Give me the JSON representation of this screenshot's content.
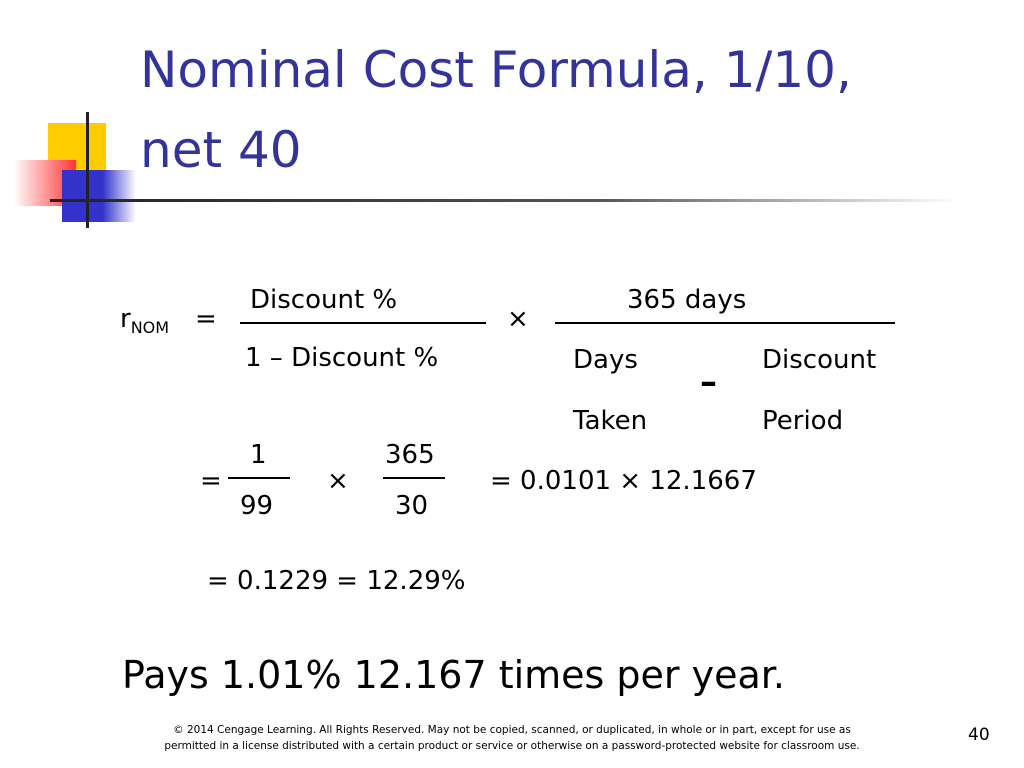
{
  "title": [
    "Nominal Cost Formula, 1/10,",
    "net 40"
  ],
  "formula": {
    "r": "r",
    "sub": "NOM",
    "equals": "=",
    "num1": "Discount %",
    "den1": "1 – Discount %",
    "times": "×",
    "num2": "365 days",
    "den2_left": [
      "Days",
      "Taken"
    ],
    "minus": "–",
    "den2_right": [
      "Discount",
      "Period"
    ]
  },
  "step2": {
    "equals": "=",
    "num1": "1",
    "den1": "99",
    "times": "×",
    "num2": "365",
    "den2": "30",
    "result": "= 0.0101 × 12.1667"
  },
  "step3": "= 0.1229 = 12.29%",
  "conclusion": "Pays 1.01% 12.167 times per year.",
  "footer": [
    "© 2014 Cengage Learning. All Rights Reserved. May not be copied, scanned, or duplicated, in whole or in part, except for use as",
    "permitted in a license distributed with a certain product or service or otherwise on a password-protected website for classroom use."
  ],
  "page_number": "40"
}
